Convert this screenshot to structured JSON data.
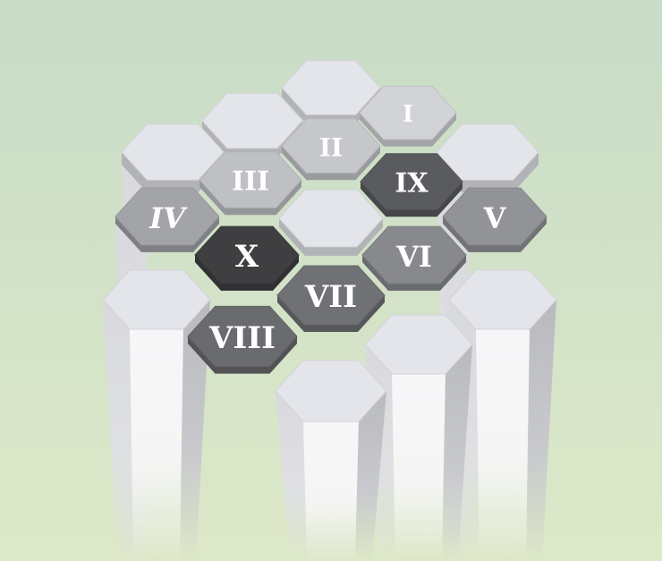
{
  "colors": {
    "background_top": "#c8dcc8",
    "background_bottom": "#dde8c8",
    "plain_top": "#e4e5ea",
    "shade_1": "#d2d3d7",
    "shade_2": "#c6c7cb",
    "shade_3": "#bfc0c4",
    "shade_4": "#a3a4a8",
    "shade_5": "#929397",
    "shade_6": "#88898d",
    "shade_7": "#707174",
    "shade_8": "#6a6b6e",
    "shade_9": "#5a5b5e",
    "shade_10": "#3f3f41"
  },
  "tiles": [
    {
      "id": "plain-top-center",
      "label": "",
      "shade": "plain_top"
    },
    {
      "id": "plain-top-left",
      "label": "",
      "shade": "plain_top"
    },
    {
      "id": "plain-upper-left",
      "label": "",
      "shade": "plain_top"
    },
    {
      "id": "plain-upper-right",
      "label": "",
      "shade": "plain_top"
    },
    {
      "id": "plain-center",
      "label": "",
      "shade": "plain_top"
    },
    {
      "id": "plain-lower-left",
      "label": "",
      "shade": "plain_top"
    },
    {
      "id": "plain-lower-right",
      "label": "",
      "shade": "plain_top"
    },
    {
      "id": "plain-bottom-right",
      "label": "",
      "shade": "plain_top"
    },
    {
      "id": "plain-bottom-center",
      "label": "",
      "shade": "plain_top"
    },
    {
      "id": "tile-i",
      "label": "I",
      "shade": "shade_1"
    },
    {
      "id": "tile-ii",
      "label": "II",
      "shade": "shade_2"
    },
    {
      "id": "tile-iii",
      "label": "III",
      "shade": "shade_3"
    },
    {
      "id": "tile-iv",
      "label": "IV",
      "shade": "shade_4"
    },
    {
      "id": "tile-v",
      "label": "V",
      "shade": "shade_5"
    },
    {
      "id": "tile-vi",
      "label": "VI",
      "shade": "shade_6"
    },
    {
      "id": "tile-vii",
      "label": "VII",
      "shade": "shade_7"
    },
    {
      "id": "tile-viii",
      "label": "VIII",
      "shade": "shade_8"
    },
    {
      "id": "tile-ix",
      "label": "IX",
      "shade": "shade_9"
    },
    {
      "id": "tile-x",
      "label": "X",
      "shade": "shade_10"
    }
  ]
}
